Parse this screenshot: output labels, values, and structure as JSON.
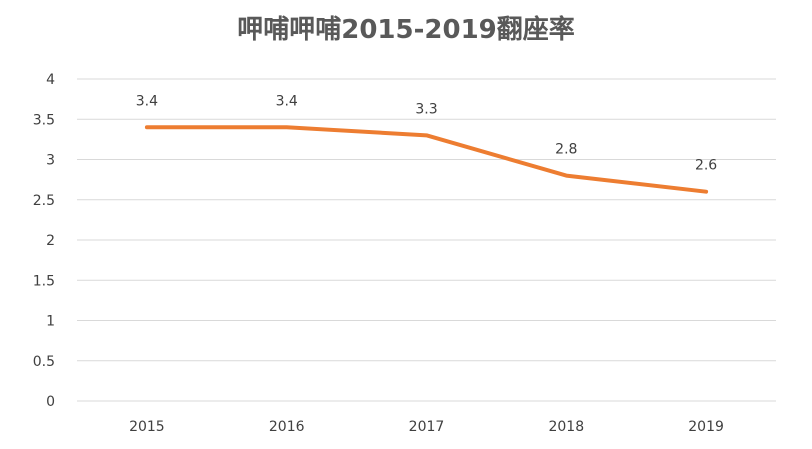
{
  "chart_data": {
    "type": "line",
    "title": "呷哺呷哺2015-2019翻座率",
    "xlabel": "",
    "ylabel": "",
    "categories": [
      "2015",
      "2016",
      "2017",
      "2018",
      "2019"
    ],
    "series": [
      {
        "name": "翻座率",
        "values": [
          3.4,
          3.4,
          3.3,
          2.8,
          2.6
        ],
        "data_labels": [
          "3.4",
          "3.4",
          "3.3",
          "2.8",
          "2.6"
        ]
      }
    ],
    "ylim": [
      0,
      4
    ],
    "y_ticks": [
      "0",
      "0.5",
      "1",
      "1.5",
      "2",
      "2.5",
      "3",
      "3.5",
      "4"
    ],
    "grid": true,
    "legend": "none"
  },
  "colors": {
    "line": "#ED7D31",
    "grid": "#D9D9D9",
    "text": "#404040",
    "title": "#595959"
  }
}
